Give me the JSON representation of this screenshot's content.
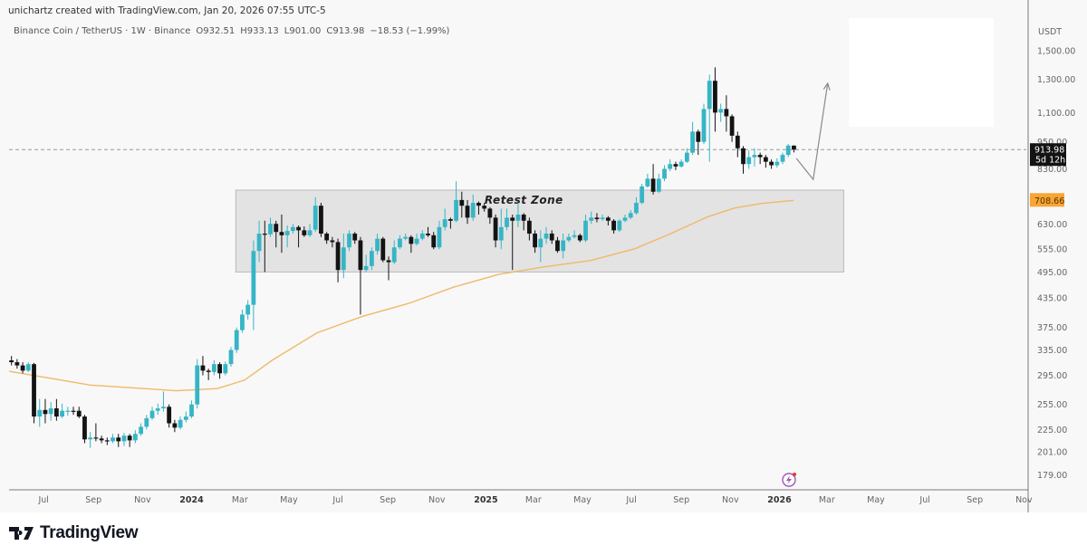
{
  "header": {
    "credit": "unichartz created with TradingView.com, Jan 20, 2026 07:55 UTC-5",
    "symbol": "Binance Coin / TetherUS · 1W · Binance",
    "open": "O932.51",
    "high": "H933.13",
    "low": "L901.00",
    "close": "C913.98",
    "change": "−18.53 (−1.99%)"
  },
  "footer": {
    "brand": "TradingView"
  },
  "colors": {
    "up": "#36b5c6",
    "down": "#131313",
    "ma": "#f0b968",
    "ma_label": "#f7a534",
    "zone": "#e3e3e3",
    "price_label": "#131313",
    "event_icon": "#9b59b6"
  },
  "chart_data": {
    "type": "candlestick",
    "interval": "1W",
    "first_week": "2023-05-22",
    "y_scale": "log",
    "ylim": [
      167,
      1766
    ],
    "xlim": [
      "2023-05-19",
      "2026-11-04"
    ],
    "y_axis_unit": "USDT",
    "y_ticks": [
      1500,
      1300,
      1100,
      950,
      830,
      630,
      555,
      495,
      435,
      375,
      335,
      295,
      255,
      225,
      201,
      179
    ],
    "y_tick_labels": [
      "1,500.00",
      "1,300.00",
      "1,100.00",
      "950.00",
      "830.00",
      "630.00",
      "555.00",
      "495.00",
      "435.00",
      "375.00",
      "335.00",
      "295.00",
      "255.00",
      "225.00",
      "201.00",
      "179.00"
    ],
    "x_ticks": [
      {
        "date": "2023-07-01",
        "label": "Jul"
      },
      {
        "date": "2023-09-01",
        "label": "Sep"
      },
      {
        "date": "2023-11-01",
        "label": "Nov"
      },
      {
        "date": "2024-01-01",
        "label": "2024",
        "bold": true
      },
      {
        "date": "2024-03-01",
        "label": "Mar"
      },
      {
        "date": "2024-05-01",
        "label": "May"
      },
      {
        "date": "2024-07-01",
        "label": "Jul"
      },
      {
        "date": "2024-09-01",
        "label": "Sep"
      },
      {
        "date": "2024-11-01",
        "label": "Nov"
      },
      {
        "date": "2025-01-01",
        "label": "2025",
        "bold": true
      },
      {
        "date": "2025-03-01",
        "label": "Mar"
      },
      {
        "date": "2025-05-01",
        "label": "May"
      },
      {
        "date": "2025-07-01",
        "label": "Jul"
      },
      {
        "date": "2025-09-01",
        "label": "Sep"
      },
      {
        "date": "2025-11-01",
        "label": "Nov"
      },
      {
        "date": "2026-01-01",
        "label": "2026",
        "bold": true
      },
      {
        "date": "2026-03-01",
        "label": "Mar"
      },
      {
        "date": "2026-05-01",
        "label": "May"
      },
      {
        "date": "2026-07-01",
        "label": "Jul"
      },
      {
        "date": "2026-09-01",
        "label": "Sep"
      },
      {
        "date": "2026-11-01",
        "label": "Nov"
      }
    ],
    "candles_ohlc": [
      [
        318,
        325,
        310,
        315
      ],
      [
        315,
        320,
        305,
        310
      ],
      [
        310,
        315,
        298,
        302
      ],
      [
        302,
        315,
        300,
        312
      ],
      [
        312,
        314,
        232,
        240
      ],
      [
        240,
        262,
        228,
        248
      ],
      [
        248,
        262,
        232,
        243
      ],
      [
        243,
        258,
        235,
        250
      ],
      [
        250,
        262,
        235,
        240
      ],
      [
        240,
        256,
        238,
        247
      ],
      [
        247,
        252,
        241,
        247
      ],
      [
        247,
        252,
        242,
        246
      ],
      [
        247,
        252,
        238,
        240
      ],
      [
        240,
        242,
        210,
        214
      ],
      [
        214,
        222,
        205,
        216
      ],
      [
        216,
        232,
        212,
        215
      ],
      [
        215,
        218,
        210,
        213
      ],
      [
        213,
        216,
        208,
        212
      ],
      [
        212,
        220,
        210,
        216
      ],
      [
        216,
        220,
        206,
        212
      ],
      [
        212,
        221,
        207,
        218
      ],
      [
        218,
        220,
        206,
        213
      ],
      [
        213,
        224,
        210,
        220
      ],
      [
        220,
        232,
        218,
        228
      ],
      [
        228,
        242,
        225,
        238
      ],
      [
        238,
        252,
        236,
        247
      ],
      [
        247,
        256,
        242,
        250
      ],
      [
        250,
        272,
        246,
        252
      ],
      [
        252,
        255,
        227,
        232
      ],
      [
        232,
        236,
        222,
        227
      ],
      [
        227,
        240,
        225,
        236
      ],
      [
        236,
        246,
        233,
        240
      ],
      [
        240,
        260,
        238,
        255
      ],
      [
        255,
        320,
        250,
        310
      ],
      [
        310,
        325,
        295,
        302
      ],
      [
        302,
        305,
        288,
        300
      ],
      [
        300,
        318,
        295,
        312
      ],
      [
        312,
        315,
        290,
        298
      ],
      [
        298,
        316,
        295,
        312
      ],
      [
        312,
        340,
        308,
        335
      ],
      [
        335,
        375,
        330,
        370
      ],
      [
        370,
        410,
        365,
        400
      ],
      [
        400,
        430,
        390,
        420
      ],
      [
        420,
        580,
        370,
        550
      ],
      [
        550,
        640,
        520,
        600
      ],
      [
        600,
        640,
        495,
        598
      ],
      [
        598,
        650,
        590,
        630
      ],
      [
        630,
        640,
        560,
        605
      ],
      [
        605,
        660,
        545,
        595
      ],
      [
        595,
        625,
        560,
        608
      ],
      [
        608,
        630,
        600,
        620
      ],
      [
        620,
        625,
        560,
        610
      ],
      [
        610,
        622,
        590,
        595
      ],
      [
        595,
        630,
        590,
        610
      ],
      [
        612,
        720,
        605,
        690
      ],
      [
        690,
        700,
        590,
        600
      ],
      [
        600,
        605,
        570,
        580
      ],
      [
        580,
        590,
        560,
        575
      ],
      [
        575,
        585,
        470,
        500
      ],
      [
        500,
        600,
        480,
        560
      ],
      [
        560,
        610,
        550,
        600
      ],
      [
        600,
        605,
        570,
        580
      ],
      [
        580,
        590,
        400,
        500
      ],
      [
        500,
        540,
        495,
        510
      ],
      [
        510,
        560,
        500,
        550
      ],
      [
        550,
        600,
        540,
        585
      ],
      [
        585,
        590,
        520,
        525
      ],
      [
        525,
        535,
        475,
        520
      ],
      [
        520,
        580,
        515,
        560
      ],
      [
        560,
        595,
        555,
        585
      ],
      [
        585,
        600,
        580,
        590
      ],
      [
        590,
        595,
        545,
        570
      ],
      [
        570,
        600,
        565,
        585
      ],
      [
        585,
        610,
        580,
        600
      ],
      [
        600,
        620,
        590,
        595
      ],
      [
        595,
        605,
        555,
        560
      ],
      [
        560,
        640,
        555,
        620
      ],
      [
        620,
        680,
        610,
        645
      ],
      [
        645,
        650,
        615,
        640
      ],
      [
        640,
        780,
        635,
        710
      ],
      [
        710,
        740,
        650,
        690
      ],
      [
        690,
        710,
        630,
        650
      ],
      [
        650,
        730,
        640,
        700
      ],
      [
        700,
        705,
        660,
        690
      ],
      [
        690,
        700,
        670,
        680
      ],
      [
        680,
        685,
        630,
        650
      ],
      [
        650,
        660,
        560,
        580
      ],
      [
        580,
        680,
        555,
        620
      ],
      [
        620,
        680,
        610,
        650
      ],
      [
        650,
        660,
        500,
        640
      ],
      [
        640,
        700,
        620,
        660
      ],
      [
        660,
        665,
        610,
        640
      ],
      [
        640,
        650,
        580,
        600
      ],
      [
        600,
        610,
        545,
        560
      ],
      [
        560,
        610,
        520,
        585
      ],
      [
        585,
        620,
        570,
        600
      ],
      [
        600,
        610,
        570,
        580
      ],
      [
        580,
        590,
        545,
        550
      ],
      [
        550,
        600,
        530,
        580
      ],
      [
        580,
        600,
        575,
        590
      ],
      [
        590,
        610,
        585,
        595
      ],
      [
        595,
        600,
        575,
        580
      ],
      [
        580,
        660,
        575,
        640
      ],
      [
        640,
        670,
        630,
        650
      ],
      [
        650,
        665,
        635,
        645
      ],
      [
        645,
        660,
        640,
        650
      ],
      [
        650,
        655,
        625,
        640
      ],
      [
        640,
        645,
        600,
        610
      ],
      [
        610,
        645,
        605,
        640
      ],
      [
        640,
        660,
        635,
        650
      ],
      [
        650,
        675,
        645,
        665
      ],
      [
        665,
        720,
        660,
        700
      ],
      [
        700,
        770,
        695,
        760
      ],
      [
        760,
        810,
        755,
        790
      ],
      [
        790,
        850,
        730,
        740
      ],
      [
        740,
        810,
        735,
        790
      ],
      [
        790,
        845,
        780,
        830
      ],
      [
        830,
        870,
        820,
        850
      ],
      [
        850,
        860,
        825,
        840
      ],
      [
        840,
        870,
        835,
        860
      ],
      [
        860,
        920,
        855,
        900
      ],
      [
        900,
        1050,
        890,
        1000
      ],
      [
        1000,
        1010,
        890,
        950
      ],
      [
        950,
        1150,
        940,
        1120
      ],
      [
        1120,
        1330,
        860,
        1290
      ],
      [
        1290,
        1380,
        1000,
        1100
      ],
      [
        1100,
        1150,
        1050,
        1120
      ],
      [
        1120,
        1200,
        1000,
        1080
      ],
      [
        1080,
        1090,
        950,
        980
      ],
      [
        980,
        1000,
        880,
        920
      ],
      [
        920,
        930,
        810,
        850
      ],
      [
        850,
        910,
        830,
        880
      ],
      [
        880,
        920,
        840,
        890
      ],
      [
        890,
        900,
        850,
        880
      ],
      [
        880,
        890,
        835,
        860
      ],
      [
        860,
        870,
        830,
        845
      ],
      [
        845,
        875,
        835,
        860
      ],
      [
        860,
        900,
        850,
        890
      ],
      [
        890,
        940,
        880,
        932.51
      ],
      [
        932.51,
        933.13,
        901.0,
        913.98
      ]
    ],
    "ma": {
      "last_value_label": "708.66",
      "points": [
        [
          "2023-05-19",
          301
        ],
        [
          "2023-08-28",
          281
        ],
        [
          "2023-12-13",
          273
        ],
        [
          "2024-02-02",
          276
        ],
        [
          "2024-03-07",
          288
        ],
        [
          "2024-04-10",
          318
        ],
        [
          "2024-06-05",
          365
        ],
        [
          "2024-07-31",
          396
        ],
        [
          "2024-09-27",
          423
        ],
        [
          "2024-11-22",
          459
        ],
        [
          "2025-01-17",
          489
        ],
        [
          "2025-03-15",
          508
        ],
        [
          "2025-05-10",
          524
        ],
        [
          "2025-07-05",
          556
        ],
        [
          "2025-08-19",
          600
        ],
        [
          "2025-10-03",
          652
        ],
        [
          "2025-11-06",
          682
        ],
        [
          "2025-12-10",
          698
        ],
        [
          "2026-01-19",
          708.66
        ]
      ]
    },
    "last_price": {
      "value": 913.98,
      "label": "913.98",
      "countdown": "5d 12h"
    },
    "annotations": {
      "zone": {
        "label": "Retest Zone",
        "from": "2024-02-25",
        "to": "2026-03-22",
        "low": 495,
        "high": 746
      },
      "arrow_path": [
        [
          "2026-01-22",
          875
        ],
        [
          "2026-02-12",
          787
        ],
        [
          "2026-03-02",
          1274
        ]
      ]
    }
  }
}
